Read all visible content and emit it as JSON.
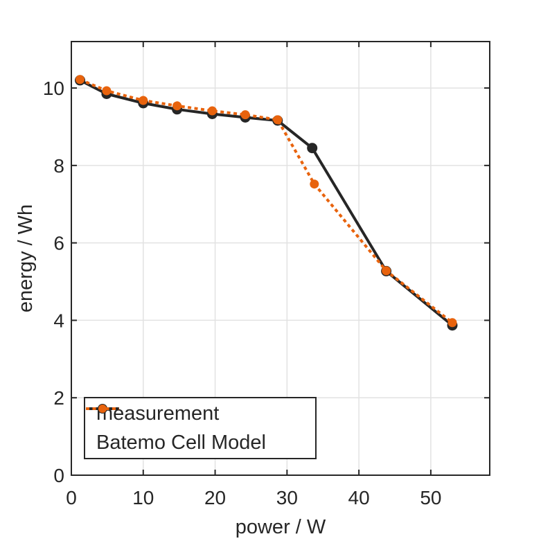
{
  "chart_data": {
    "type": "line",
    "title": "",
    "xlabel": "power / W",
    "ylabel": "energy / Wh",
    "xlim": [
      0,
      58.2
    ],
    "ylim": [
      0,
      11.2
    ],
    "xticks": [
      0,
      10,
      20,
      30,
      40,
      50
    ],
    "yticks": [
      0,
      2,
      4,
      6,
      8,
      10
    ],
    "grid": true,
    "grid_color": "#e2e2e2",
    "axis_color": "#262626",
    "legend_position": "bottom-left-inside",
    "series": [
      {
        "name": "measurement",
        "color": "#262626",
        "line_style": "solid",
        "line_width": 4,
        "marker": "circle",
        "marker_radius": 7.5,
        "points": [
          [
            1.2,
            10.2
          ],
          [
            4.9,
            9.85
          ],
          [
            10.0,
            9.61
          ],
          [
            14.7,
            9.45
          ],
          [
            19.6,
            9.33
          ],
          [
            24.2,
            9.24
          ],
          [
            28.7,
            9.16
          ],
          [
            33.5,
            8.45
          ],
          [
            43.8,
            5.27
          ],
          [
            53.0,
            3.87
          ]
        ]
      },
      {
        "name": "Batemo Cell Model",
        "color": "#e8630d",
        "line_style": "dotted",
        "line_width": 4,
        "marker": "circle",
        "marker_radius": 6.5,
        "points": [
          [
            1.2,
            10.22
          ],
          [
            4.9,
            9.93
          ],
          [
            10.0,
            9.68
          ],
          [
            14.7,
            9.54
          ],
          [
            19.6,
            9.41
          ],
          [
            24.2,
            9.31
          ],
          [
            28.7,
            9.18
          ],
          [
            33.8,
            7.52
          ],
          [
            43.8,
            5.28
          ],
          [
            53.0,
            3.94
          ]
        ]
      }
    ]
  },
  "legend": {
    "items": [
      {
        "label": "measurement"
      },
      {
        "label": "Batemo Cell Model"
      }
    ]
  }
}
